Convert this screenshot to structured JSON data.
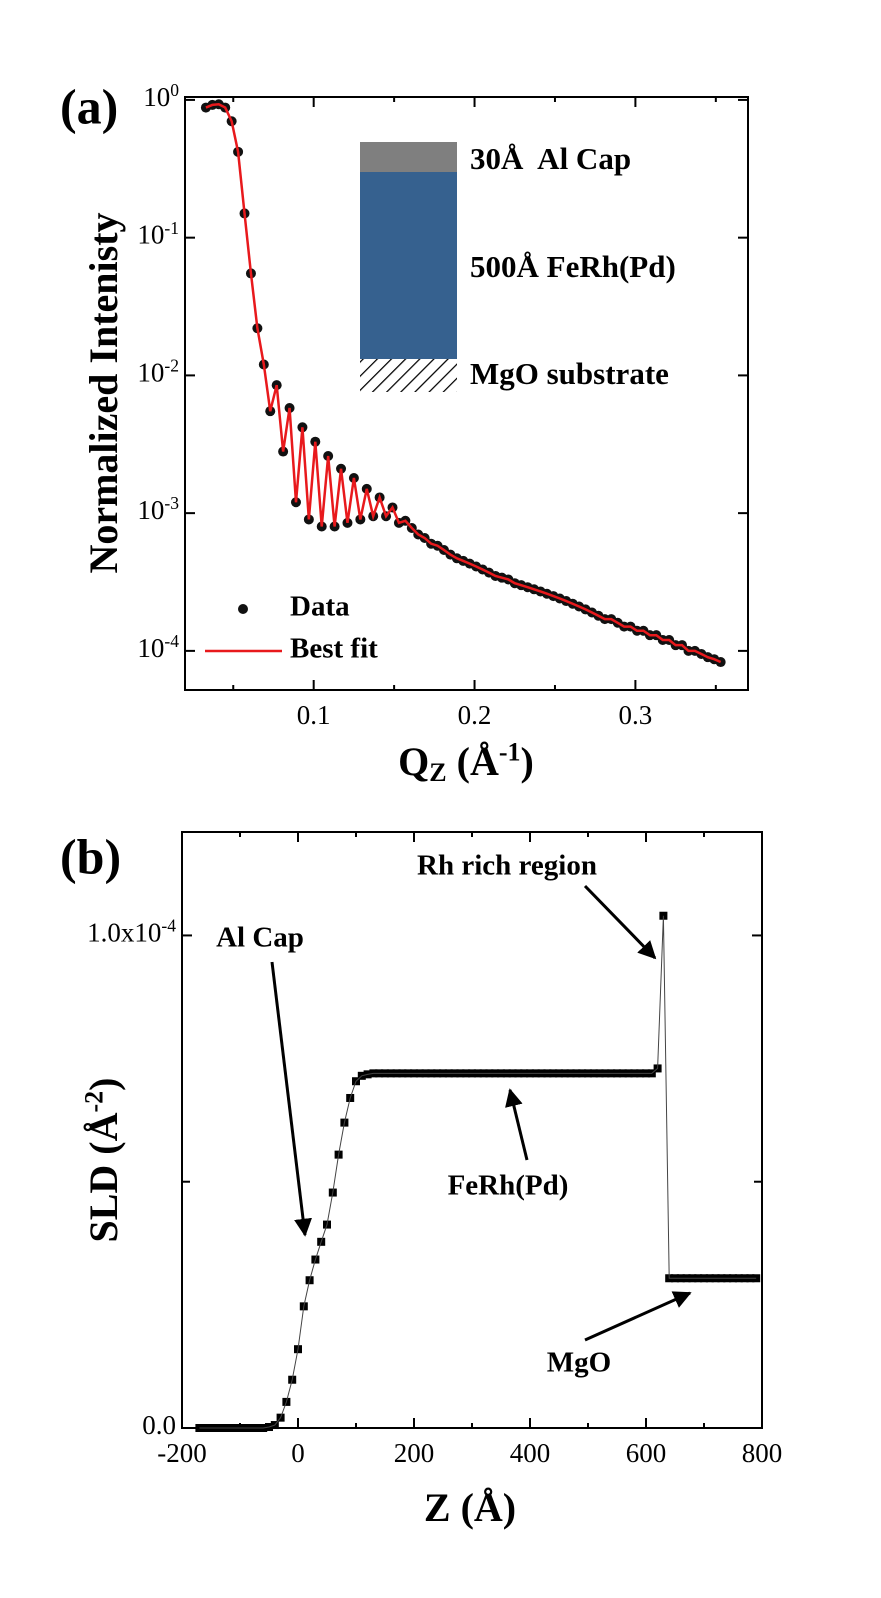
{
  "chart_data": [
    {
      "type": "line",
      "panel_label": "(a)",
      "ylog": true,
      "ylabel": "Normalized Intenisty",
      "xlabel": [
        "Q",
        "Z",
        " (Å",
        "-1",
        ")"
      ],
      "xlim": [
        0.02,
        0.37
      ],
      "xticks": [
        0.1,
        0.2,
        0.3
      ],
      "xminor_ticks": [
        0.05,
        0.15,
        0.25,
        0.35
      ],
      "ylim": [
        5.2e-05,
        1.05
      ],
      "yticks": [
        {
          "value": 1,
          "label": "10",
          "sup": "0"
        },
        {
          "value": 0.1,
          "label": "10",
          "sup": "-1"
        },
        {
          "value": 0.01,
          "label": "10",
          "sup": "-2"
        },
        {
          "value": 0.001,
          "label": "10",
          "sup": "-3"
        },
        {
          "value": 0.0001,
          "label": "10",
          "sup": "-4"
        }
      ],
      "legend": "lower left",
      "annotations": [
        "30Å  Al Cap",
        "500Å FeRh(Pd)",
        "MgO substrate"
      ],
      "x": [
        0.033,
        0.037,
        0.041,
        0.045,
        0.049,
        0.053,
        0.057,
        0.061,
        0.065,
        0.069,
        0.073,
        0.077,
        0.081,
        0.085,
        0.089,
        0.093,
        0.097,
        0.101,
        0.105,
        0.109,
        0.113,
        0.117,
        0.121,
        0.125,
        0.129,
        0.133,
        0.137,
        0.141,
        0.145,
        0.149,
        0.153,
        0.157,
        0.161,
        0.165,
        0.169,
        0.173,
        0.177,
        0.181,
        0.185,
        0.189,
        0.193,
        0.197,
        0.201,
        0.205,
        0.209,
        0.213,
        0.217,
        0.221,
        0.225,
        0.229,
        0.233,
        0.237,
        0.241,
        0.245,
        0.249,
        0.253,
        0.257,
        0.261,
        0.265,
        0.269,
        0.273,
        0.277,
        0.281,
        0.285,
        0.289,
        0.293,
        0.297,
        0.301,
        0.305,
        0.309,
        0.313,
        0.317,
        0.321,
        0.325,
        0.329,
        0.333,
        0.337,
        0.341,
        0.345,
        0.349,
        0.353
      ],
      "series": [
        {
          "name": "Data",
          "color": "#111111",
          "marker": "circle",
          "line": false,
          "values": [
            0.88,
            0.92,
            0.93,
            0.88,
            0.7,
            0.42,
            0.15,
            0.055,
            0.022,
            0.012,
            0.0055,
            0.0085,
            0.0028,
            0.0058,
            0.0012,
            0.0042,
            0.0009,
            0.0033,
            0.0008,
            0.0026,
            0.0008,
            0.0021,
            0.00085,
            0.0018,
            0.0009,
            0.0015,
            0.00095,
            0.0013,
            0.00095,
            0.0011,
            0.00085,
            0.00088,
            0.00078,
            0.0007,
            0.00066,
            0.0006,
            0.00058,
            0.00054,
            0.0005,
            0.00047,
            0.00045,
            0.00043,
            0.00041,
            0.00039,
            0.00037,
            0.00035,
            0.00034,
            0.00033,
            0.00031,
            0.0003,
            0.00029,
            0.00028,
            0.00027,
            0.00026,
            0.00025,
            0.00024,
            0.00023,
            0.00022,
            0.00021,
            0.0002,
            0.00019,
            0.00018,
            0.00017,
            0.00017,
            0.00016,
            0.00015,
            0.00015,
            0.00014,
            0.00014,
            0.00013,
            0.00013,
            0.00012,
            0.00012,
            0.00011,
            0.00011,
            0.0001,
            0.0001,
            9.5e-05,
            9e-05,
            8.7e-05,
            8.3e-05
          ]
        },
        {
          "name": "Best fit",
          "color": "#e8191c",
          "marker": null,
          "line": true,
          "values": [
            0.88,
            0.92,
            0.93,
            0.88,
            0.7,
            0.42,
            0.15,
            0.055,
            0.022,
            0.012,
            0.0055,
            0.0085,
            0.0028,
            0.0058,
            0.0012,
            0.0042,
            0.0009,
            0.0033,
            0.0008,
            0.0026,
            0.0008,
            0.0021,
            0.00085,
            0.0018,
            0.0009,
            0.0015,
            0.00095,
            0.0013,
            0.00095,
            0.0011,
            0.00085,
            0.00088,
            0.00078,
            0.0007,
            0.00066,
            0.0006,
            0.00058,
            0.00054,
            0.0005,
            0.00047,
            0.00045,
            0.00043,
            0.00041,
            0.00039,
            0.00037,
            0.00035,
            0.00034,
            0.00033,
            0.00031,
            0.0003,
            0.00029,
            0.00028,
            0.00027,
            0.00026,
            0.00025,
            0.00024,
            0.00023,
            0.00022,
            0.00021,
            0.0002,
            0.00019,
            0.00018,
            0.00017,
            0.00017,
            0.00016,
            0.00015,
            0.00015,
            0.00014,
            0.00014,
            0.00013,
            0.00013,
            0.00012,
            0.00012,
            0.00011,
            0.00011,
            0.0001,
            0.0001,
            9.5e-05,
            9e-05,
            8.7e-05,
            8.3e-05
          ]
        }
      ]
    },
    {
      "type": "scatter",
      "panel_label": "(b)",
      "ylog": false,
      "ylabel": [
        "SLD (Å",
        "-2",
        ")"
      ],
      "xlabel": "Z (Å)",
      "xlim": [
        -200,
        800
      ],
      "xticks": [
        -200,
        0,
        200,
        400,
        600,
        800
      ],
      "xminor_ticks": [
        -100,
        100,
        300,
        500,
        700
      ],
      "ylim": [
        0,
        0.000121
      ],
      "yticks": [
        {
          "value": 0,
          "label": "0.0"
        },
        {
          "value": 0.0001,
          "label": "1.0x10",
          "sup": "-4"
        }
      ],
      "yminor_ticks": [
        5e-05
      ],
      "annotations": [
        "Rh rich region",
        "Al Cap",
        "FeRh(Pd)",
        "MgO"
      ],
      "x": [
        -170,
        -160,
        -150,
        -140,
        -130,
        -120,
        -110,
        -100,
        -90,
        -80,
        -70,
        -60,
        -50,
        -40,
        -30,
        -20,
        -10,
        0,
        10,
        20,
        30,
        40,
        50,
        60,
        70,
        80,
        90,
        100,
        110,
        120,
        130,
        140,
        150,
        160,
        170,
        180,
        190,
        200,
        210,
        220,
        230,
        240,
        250,
        260,
        270,
        280,
        290,
        300,
        310,
        320,
        330,
        340,
        350,
        360,
        370,
        380,
        390,
        400,
        410,
        420,
        430,
        440,
        450,
        460,
        470,
        480,
        490,
        500,
        510,
        520,
        530,
        540,
        550,
        560,
        570,
        580,
        590,
        600,
        610,
        620,
        630,
        640,
        650,
        660,
        670,
        680,
        690,
        700,
        710,
        720,
        730,
        740,
        750,
        760,
        770,
        780,
        790,
        800
      ],
      "series": [
        {
          "name": "SLD",
          "color": "#000000",
          "marker": "square",
          "line": true,
          "values": [
            0,
            0,
            0,
            0,
            0,
            0,
            0,
            0,
            0,
            0,
            0,
            0,
            2e-07,
            6e-07,
            2.1e-06,
            5.3e-06,
            9.8e-06,
            1.6e-05,
            2.47e-05,
            3e-05,
            3.42e-05,
            3.78e-05,
            4.13e-05,
            4.78e-05,
            5.55e-05,
            6.2e-05,
            6.7e-05,
            7.04e-05,
            7.15e-05,
            7.18e-05,
            7.2e-05,
            7.2e-05,
            7.2e-05,
            7.2e-05,
            7.2e-05,
            7.2e-05,
            7.2e-05,
            7.2e-05,
            7.2e-05,
            7.2e-05,
            7.2e-05,
            7.2e-05,
            7.2e-05,
            7.2e-05,
            7.2e-05,
            7.2e-05,
            7.2e-05,
            7.2e-05,
            7.2e-05,
            7.2e-05,
            7.2e-05,
            7.2e-05,
            7.2e-05,
            7.2e-05,
            7.2e-05,
            7.2e-05,
            7.2e-05,
            7.2e-05,
            7.2e-05,
            7.2e-05,
            7.2e-05,
            7.2e-05,
            7.2e-05,
            7.2e-05,
            7.2e-05,
            7.2e-05,
            7.2e-05,
            7.2e-05,
            7.2e-05,
            7.2e-05,
            7.2e-05,
            7.2e-05,
            7.2e-05,
            7.2e-05,
            7.2e-05,
            7.2e-05,
            7.2e-05,
            7.2e-05,
            7.2e-05,
            7.3e-05,
            0.000104,
            3.04e-05,
            3.04e-05,
            3.04e-05,
            3.04e-05,
            3.04e-05,
            3.04e-05,
            3.04e-05,
            3.04e-05,
            3.04e-05,
            3.04e-05,
            3.04e-05,
            3.04e-05,
            3.04e-05,
            3.04e-05,
            3.04e-05,
            3.04e-05
          ]
        }
      ]
    }
  ]
}
